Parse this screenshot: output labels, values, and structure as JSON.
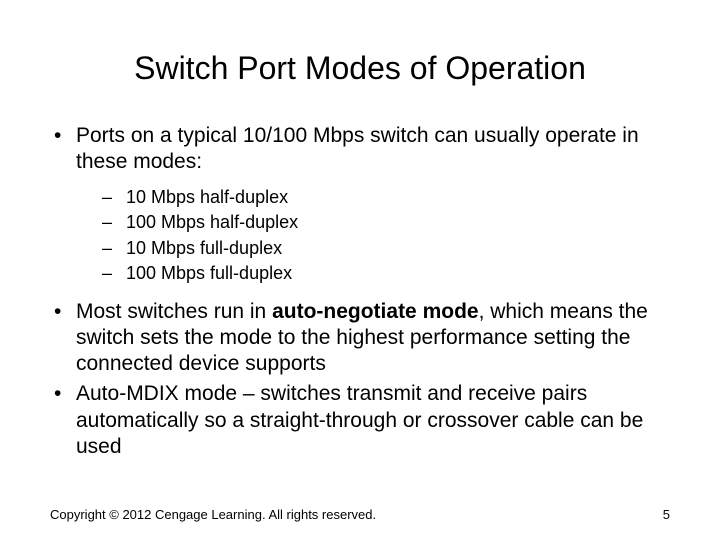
{
  "title": "Switch Port Modes of Operation",
  "bullets": {
    "b1": "Ports on a typical 10/100 Mbps switch can usually operate in these modes:",
    "sub": {
      "s1": "10 Mbps half-duplex",
      "s2": "100 Mbps half-duplex",
      "s3": "10 Mbps full-duplex",
      "s4": "100 Mbps full-duplex"
    },
    "b2_pre": "Most switches run in ",
    "b2_bold": "auto-negotiate mode",
    "b2_post": ", which means the switch sets the mode to the highest performance setting the connected device supports",
    "b3": "Auto-MDIX mode – switches transmit and receive pairs automatically so a straight-through or crossover cable can be used"
  },
  "footer": {
    "copyright": "Copyright © 2012 Cengage Learning. All rights reserved.",
    "page": "5"
  },
  "style": {
    "bg": "#ffffff",
    "text_color": "#000000",
    "title_fontsize": 32,
    "body_fontsize": 21,
    "sub_fontsize": 18,
    "footer_fontsize": 13
  }
}
